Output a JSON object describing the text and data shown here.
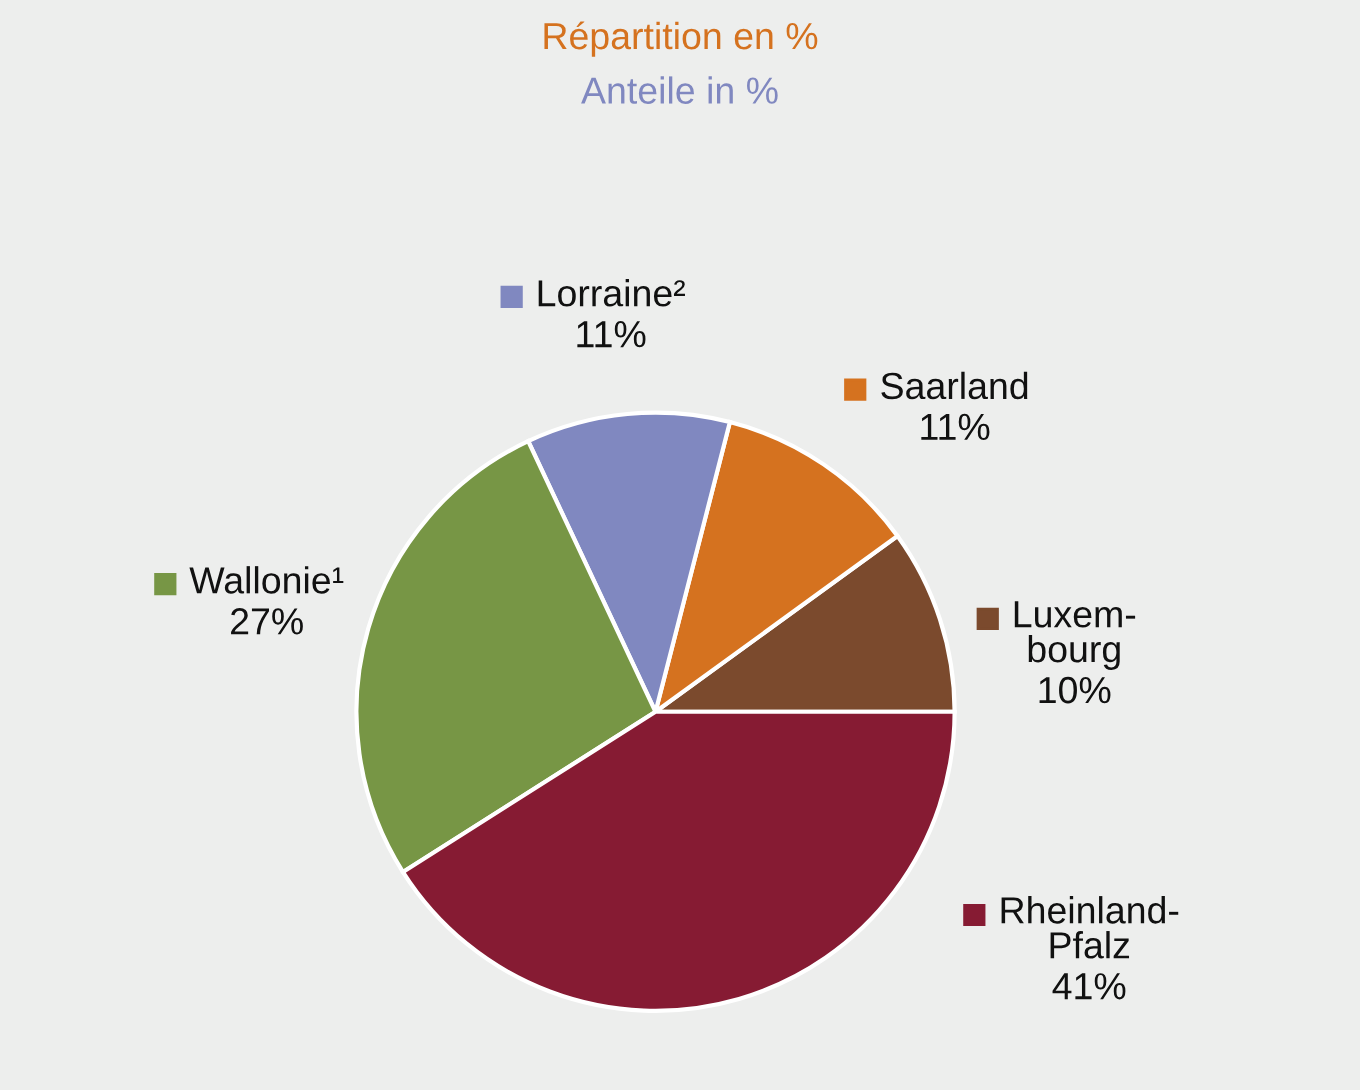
{
  "chart_data": {
    "type": "pie",
    "title": "Répartition en %",
    "subtitle": "Anteile in %",
    "categories": [
      "Luxem-\nbourg",
      "Saarland",
      "Lorraine²",
      "Wallonie¹",
      "Rheinland-\nPfalz"
    ],
    "values": [
      10,
      11,
      11,
      27,
      41
    ],
    "colors": [
      "#7b4a2d",
      "#d5721f",
      "#8088c0",
      "#779645",
      "#861b33"
    ],
    "value_labels": [
      "10%",
      "11%",
      "11%",
      "27%",
      "41%"
    ],
    "legend": "center"
  }
}
